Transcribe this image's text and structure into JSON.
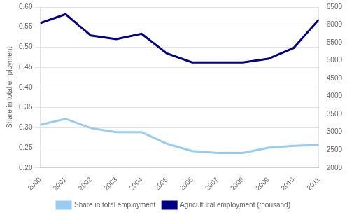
{
  "chart_data": {
    "type": "line",
    "x": [
      2000,
      2001,
      2002,
      2003,
      2004,
      2005,
      2006,
      2007,
      2008,
      2009,
      2010,
      2011
    ],
    "xlim": [
      2000,
      2011
    ],
    "xticks": [
      2000,
      2001,
      2002,
      2003,
      2004,
      2005,
      2006,
      2007,
      2008,
      2009,
      2010,
      2011
    ],
    "y_label": "Share in total employment",
    "ylim": [
      0.2,
      0.6
    ],
    "yticks": [
      {
        "value": 0.2,
        "label": "0.20"
      },
      0.25,
      {
        "value": 0.3,
        "label": "0.30"
      },
      0.35,
      {
        "value": 0.4,
        "label": "0.40"
      },
      0.45,
      {
        "value": 0.5,
        "label": "0.50"
      },
      0.55,
      {
        "value": 0.6,
        "label": "0.60"
      }
    ],
    "y2lim": [
      2000,
      6500
    ],
    "y2ticks": [
      2000,
      2500,
      3000,
      3500,
      4000,
      4500,
      5000,
      5500,
      6000,
      6500
    ],
    "grid": true,
    "legend": "bottom",
    "series": [
      {
        "name": "Share in total employment",
        "color": "#99ccee",
        "axis": "y",
        "values": [
          0.307,
          0.322,
          0.299,
          0.289,
          0.289,
          0.26,
          0.242,
          0.237,
          0.237,
          0.25,
          0.255,
          0.257
        ]
      },
      {
        "name": "Agricultural employment (thousand)",
        "color": "#000080",
        "axis": "y2",
        "values": [
          6050,
          6300,
          5700,
          5600,
          5750,
          5200,
          4950,
          4950,
          4950,
          5050,
          5350,
          6150
        ]
      }
    ]
  }
}
